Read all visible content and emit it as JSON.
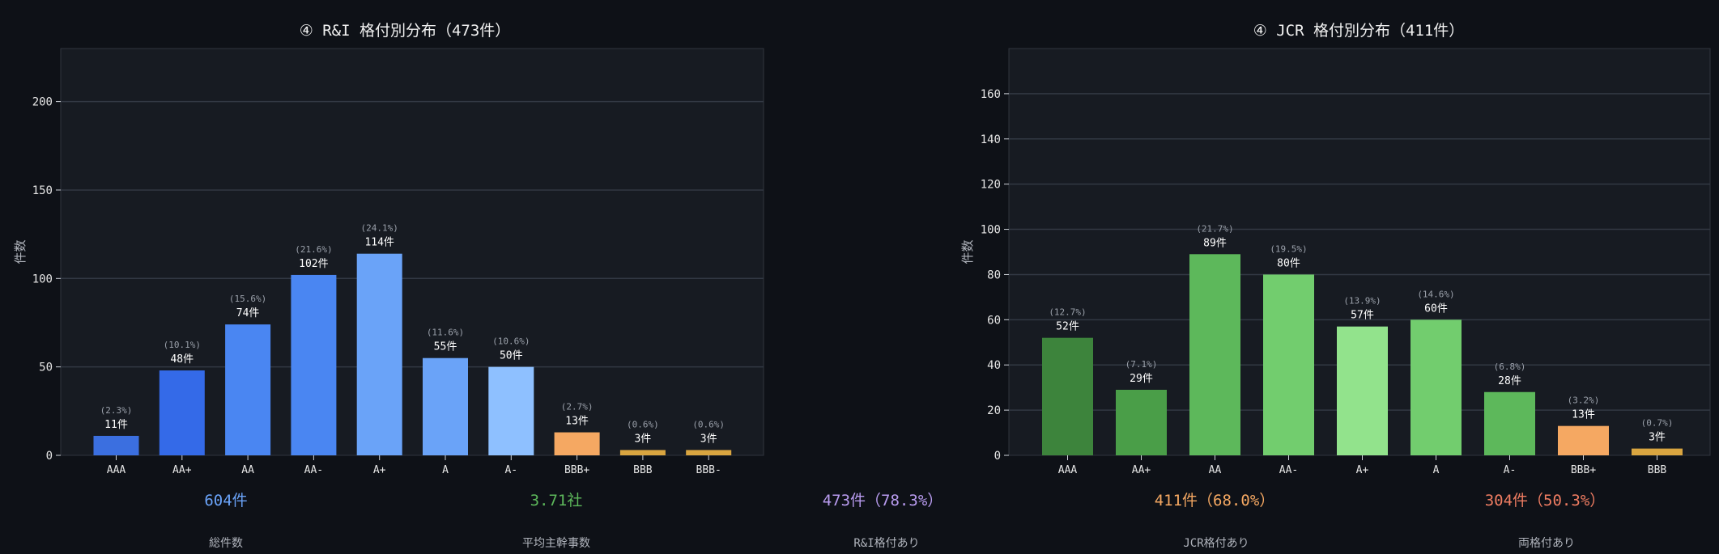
{
  "chart_data": [
    {
      "type": "bar",
      "title": "④ R&I 格付別分布（473件）",
      "ylabel": "件数",
      "xlabel": "",
      "ylim": [
        0,
        230
      ],
      "yticks": [
        0,
        50,
        100,
        150,
        200
      ],
      "grid": true,
      "categories": [
        "AAA",
        "AA+",
        "AA",
        "AA-",
        "A+",
        "A",
        "A-",
        "BBB+",
        "BBB",
        "BBB-"
      ],
      "values": [
        11,
        48,
        74,
        102,
        114,
        55,
        50,
        13,
        3,
        3
      ],
      "value_labels": [
        "11件",
        "48件",
        "74件",
        "102件",
        "114件",
        "55件",
        "50件",
        "13件",
        "3件",
        "3件"
      ],
      "pct_labels": [
        "(2.3%)",
        "(10.1%)",
        "(15.6%)",
        "(21.6%)",
        "(24.1%)",
        "(11.6%)",
        "(10.6%)",
        "(2.7%)",
        "(0.6%)",
        "(0.6%)"
      ],
      "colors": [
        "#3b6fe0",
        "#346ae8",
        "#4a86f2",
        "#4a86f2",
        "#6aa3f8",
        "#6aa3f8",
        "#8ec0ff",
        "#f5a862",
        "#d9a540",
        "#d9a540"
      ]
    },
    {
      "type": "bar",
      "title": "④ JCR 格付別分布（411件）",
      "ylabel": "件数",
      "xlabel": "",
      "ylim": [
        0,
        180
      ],
      "yticks": [
        0,
        20,
        40,
        60,
        80,
        100,
        120,
        140,
        160
      ],
      "grid": true,
      "categories": [
        "AAA",
        "AA+",
        "AA",
        "AA-",
        "A+",
        "A",
        "A-",
        "BBB+",
        "BBB"
      ],
      "values": [
        52,
        29,
        89,
        80,
        57,
        60,
        28,
        13,
        3
      ],
      "value_labels": [
        "52件",
        "29件",
        "89件",
        "80件",
        "57件",
        "60件",
        "28件",
        "13件",
        "3件"
      ],
      "pct_labels": [
        "(12.7%)",
        "(7.1%)",
        "(21.7%)",
        "(19.5%)",
        "(13.9%)",
        "(14.6%)",
        "(6.8%)",
        "(3.2%)",
        "(0.7%)"
      ],
      "colors": [
        "#3d843c",
        "#4a9e48",
        "#5db85b",
        "#72cd6e",
        "#92e38c",
        "#72cd6e",
        "#5db85b",
        "#f5a862",
        "#d9a540"
      ]
    }
  ],
  "stats": [
    {
      "value": "604件",
      "label": "総件数",
      "color": "#6aa3f8"
    },
    {
      "value": "3.71社",
      "label": "平均主幹事数",
      "color": "#5db85b"
    },
    {
      "value": "473件（78.3%）",
      "label": "R&I格付あり",
      "color": "#b99cf0"
    },
    {
      "value": "411件（68.0%）",
      "label": "JCR格付あり",
      "color": "#f5a862"
    },
    {
      "value": "304件（50.3%）",
      "label": "両格付あり",
      "color": "#f07d62"
    }
  ]
}
